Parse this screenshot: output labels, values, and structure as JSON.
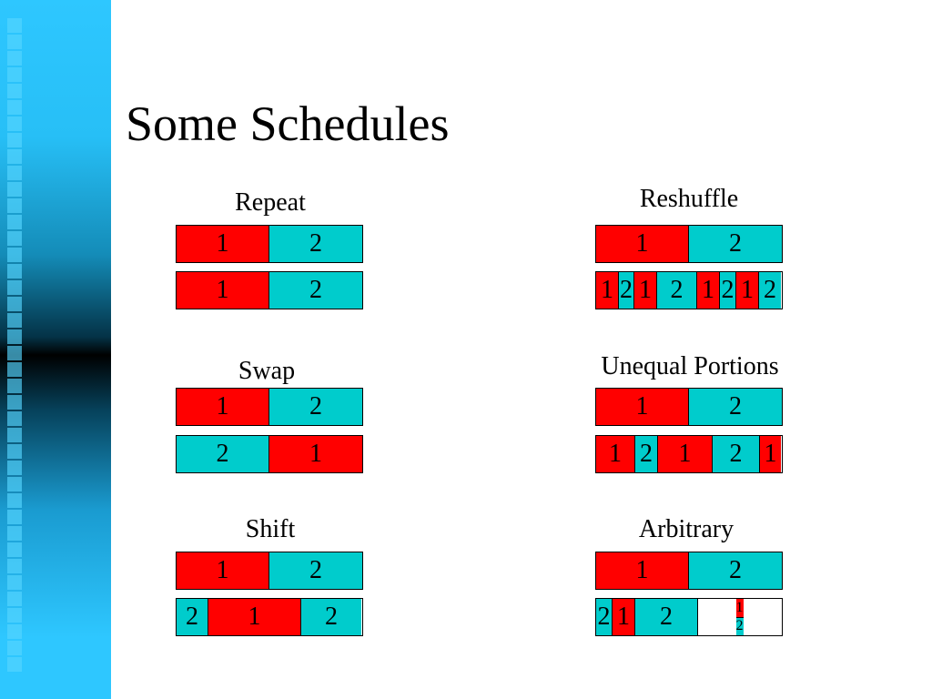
{
  "slide": {
    "title": "Some Schedules",
    "colors": {
      "sidebar": "#2ec7ff",
      "portion_1": "#ff0000",
      "portion_2": "#00cccc"
    }
  },
  "schedules": [
    {
      "label": "Repeat",
      "rows": [
        [
          "1",
          "2"
        ],
        [
          "1",
          "2"
        ]
      ]
    },
    {
      "label": "Reshuffle",
      "rows": [
        [
          "1",
          "2"
        ],
        [
          "1",
          "2",
          "1",
          "2",
          "1",
          "2",
          "1",
          "2"
        ]
      ]
    },
    {
      "label": "Swap",
      "rows": [
        [
          "1",
          "2"
        ],
        [
          "2",
          "1"
        ]
      ]
    },
    {
      "label": "Unequal Portions",
      "rows": [
        [
          "1",
          "2"
        ],
        [
          "1",
          "2",
          "1",
          "2",
          "1"
        ]
      ]
    },
    {
      "label": "Shift",
      "rows": [
        [
          "1",
          "2"
        ],
        [
          "2",
          "1",
          "2"
        ]
      ]
    },
    {
      "label": "Arbitrary",
      "rows": [
        [
          "1",
          "2"
        ],
        [
          "2",
          "1",
          "2",
          "1",
          "2"
        ]
      ]
    }
  ]
}
